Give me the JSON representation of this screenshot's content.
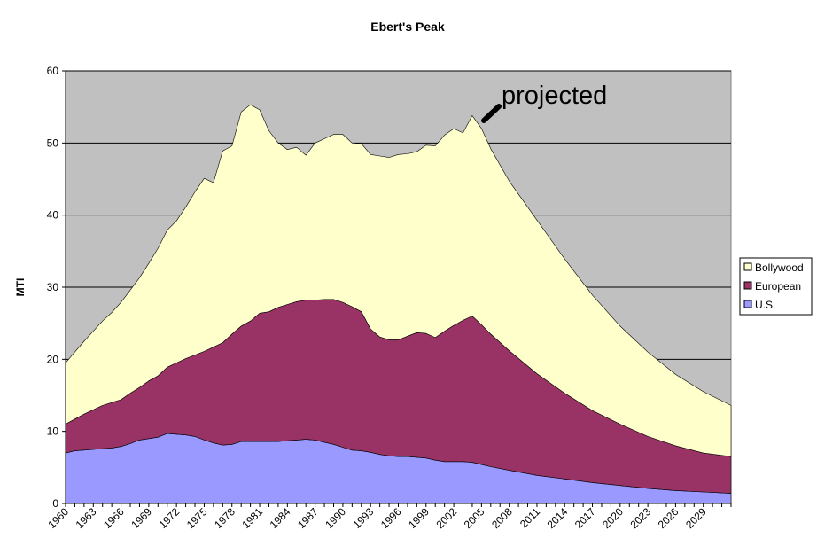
{
  "chart_data": {
    "type": "area",
    "stacked": true,
    "title": "Ebert's Peak",
    "xlabel": "",
    "ylabel": "MTI",
    "ylim": [
      0,
      60
    ],
    "yticks": [
      0,
      10,
      20,
      30,
      40,
      50,
      60
    ],
    "xlim": [
      1960,
      2032
    ],
    "xticks": [
      "1960",
      "1963",
      "1966",
      "1969",
      "1972",
      "1975",
      "1978",
      "1981",
      "1984",
      "1987",
      "1990",
      "1993",
      "1996",
      "1999",
      "2002",
      "2005",
      "2008",
      "2011",
      "2014",
      "2017",
      "2020",
      "2023",
      "2026",
      "2029"
    ],
    "grid": true,
    "legend_position": "right",
    "plot_background": "#c0c0c0",
    "annotation": {
      "text": "projected",
      "x": 2004.5,
      "y": 54
    },
    "x": [
      1960,
      1961,
      1962,
      1963,
      1964,
      1965,
      1966,
      1967,
      1968,
      1969,
      1970,
      1971,
      1972,
      1973,
      1974,
      1975,
      1976,
      1977,
      1978,
      1979,
      1980,
      1981,
      1982,
      1983,
      1984,
      1985,
      1986,
      1987,
      1988,
      1989,
      1990,
      1991,
      1992,
      1993,
      1994,
      1995,
      1996,
      1997,
      1998,
      1999,
      2000,
      2001,
      2002,
      2003,
      2004,
      2005,
      2006,
      2008,
      2011,
      2014,
      2017,
      2020,
      2023,
      2026,
      2029,
      2032
    ],
    "series": [
      {
        "name": "U.S.",
        "color": "#9999ff",
        "values": [
          7.0,
          7.3,
          7.4,
          7.5,
          7.6,
          7.7,
          7.9,
          8.3,
          8.8,
          9.0,
          9.2,
          9.7,
          9.6,
          9.5,
          9.3,
          8.8,
          8.4,
          8.1,
          8.2,
          8.6,
          8.6,
          8.6,
          8.6,
          8.6,
          8.7,
          8.8,
          8.9,
          8.8,
          8.5,
          8.2,
          7.8,
          7.4,
          7.3,
          7.1,
          6.8,
          6.6,
          6.5,
          6.5,
          6.4,
          6.3,
          6.0,
          5.8,
          5.8,
          5.8,
          5.7,
          5.4,
          5.1,
          4.6,
          3.9,
          3.4,
          2.9,
          2.5,
          2.1,
          1.8,
          1.6,
          1.4
        ]
      },
      {
        "name": "European",
        "color": "#993366",
        "values": [
          4.0,
          4.4,
          5.0,
          5.5,
          6.0,
          6.3,
          6.5,
          7.0,
          7.3,
          8.0,
          8.5,
          9.2,
          9.9,
          10.6,
          11.3,
          12.3,
          13.3,
          14.2,
          15.3,
          16.0,
          16.7,
          17.8,
          18.0,
          18.6,
          18.9,
          19.2,
          19.3,
          19.4,
          19.8,
          20.1,
          20.1,
          19.9,
          19.3,
          17.1,
          16.3,
          16.1,
          16.2,
          16.7,
          17.3,
          17.3,
          17.0,
          18.1,
          18.9,
          19.6,
          20.3,
          19.4,
          18.4,
          16.6,
          14.1,
          11.9,
          10.0,
          8.5,
          7.2,
          6.2,
          5.4,
          5.1
        ]
      },
      {
        "name": "Bollywood",
        "color": "#ffffcc",
        "values": [
          8.5,
          9.3,
          10.1,
          10.9,
          11.7,
          12.5,
          13.5,
          14.3,
          15.2,
          16.3,
          17.7,
          19.0,
          19.7,
          21.0,
          22.6,
          24.0,
          22.8,
          26.6,
          26.1,
          29.7,
          30.0,
          28.2,
          25.1,
          22.8,
          21.5,
          21.4,
          20.1,
          21.8,
          22.3,
          22.9,
          23.3,
          22.7,
          23.3,
          24.2,
          25.1,
          25.3,
          25.7,
          25.3,
          25.1,
          26.1,
          26.6,
          27.2,
          27.3,
          26.0,
          27.8,
          27.2,
          25.7,
          23.5,
          21.3,
          18.6,
          16.0,
          13.6,
          11.7,
          9.9,
          8.5,
          7.1
        ]
      }
    ]
  }
}
